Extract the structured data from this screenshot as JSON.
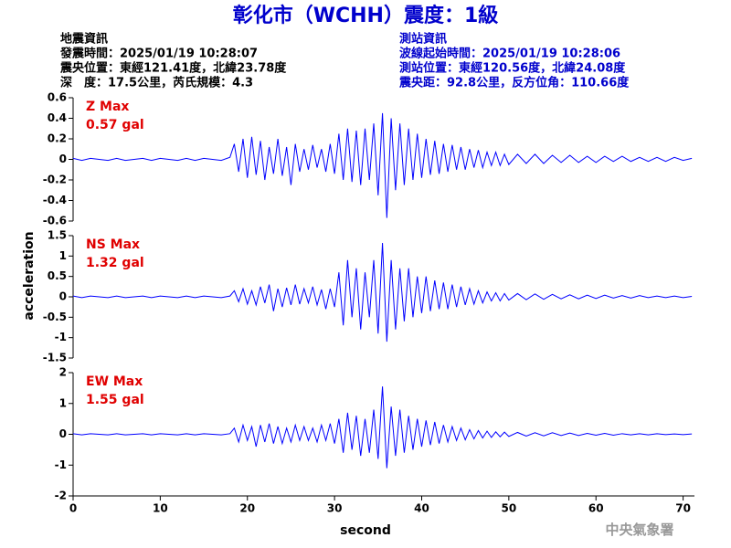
{
  "header": {
    "title": "彰化市（WCHH）震度：1級",
    "event": [
      "地震資訊",
      "發震時間：2025/01/19 10:28:07",
      "震央位置：東經121.41度，北緯23.78度",
      "深　度：17.5公里，芮氏規模：4.3"
    ],
    "station": [
      "測站資訊",
      "波線起始時間：2025/01/19 10:28:06",
      "測站位置：東經120.56度，北緯24.08度",
      "震央距：92.8公里，反方位角：110.66度"
    ]
  },
  "watermark": "中央氣象署",
  "chart_data": {
    "type": "line",
    "x_label": "second",
    "y_label": "acceleration",
    "xlim": [
      0,
      71.3
    ],
    "xticks": [
      0,
      10,
      20,
      30,
      40,
      50,
      60,
      70
    ],
    "x": [
      0,
      1,
      2,
      3,
      4,
      5,
      6,
      7,
      8,
      9,
      10,
      11,
      12,
      13,
      14,
      15,
      16,
      17,
      18,
      18.5,
      19,
      19.5,
      20,
      20.5,
      21,
      21.5,
      22,
      22.5,
      23,
      23.5,
      24,
      24.5,
      25,
      25.5,
      26,
      26.5,
      27,
      27.5,
      28,
      28.5,
      29,
      29.5,
      30,
      30.5,
      31,
      31.5,
      32,
      32.5,
      33,
      33.5,
      34,
      34.5,
      35,
      35.5,
      36,
      36.5,
      37,
      37.5,
      38,
      38.5,
      39,
      39.5,
      40,
      40.5,
      41,
      41.5,
      42,
      42.5,
      43,
      43.5,
      44,
      44.5,
      45,
      45.5,
      46,
      46.5,
      47,
      47.5,
      48,
      48.5,
      49,
      49.5,
      50,
      51,
      52,
      53,
      54,
      55,
      56,
      57,
      58,
      59,
      60,
      61,
      62,
      63,
      64,
      65,
      66,
      67,
      68,
      69,
      70,
      71
    ],
    "panels": [
      {
        "name": "Z Max",
        "annotation": "0.57 gal",
        "color": "#0000ff",
        "ylim": [
          -0.6,
          0.6
        ],
        "yticks": [
          0.6,
          0.4,
          0.2,
          0,
          -0.2,
          -0.4,
          -0.6
        ],
        "values": [
          0.01,
          -0.01,
          0.01,
          0,
          -0.01,
          0.01,
          -0.01,
          0,
          0.01,
          -0.01,
          0.01,
          0,
          -0.01,
          0.01,
          -0.01,
          0.01,
          0,
          -0.01,
          0.02,
          0.15,
          -0.12,
          0.2,
          -0.18,
          0.22,
          -0.15,
          0.18,
          -0.2,
          0.12,
          -0.14,
          0.2,
          -0.16,
          0.12,
          -0.25,
          0.15,
          -0.12,
          0.1,
          -0.1,
          0.14,
          -0.08,
          0.1,
          -0.12,
          0.15,
          -0.14,
          0.25,
          -0.2,
          0.3,
          -0.22,
          0.28,
          -0.25,
          0.3,
          -0.2,
          0.35,
          -0.35,
          0.45,
          -0.57,
          0.4,
          -0.3,
          0.35,
          -0.25,
          0.3,
          -0.2,
          0.25,
          -0.18,
          0.2,
          -0.15,
          0.18,
          -0.14,
          0.15,
          -0.12,
          0.14,
          -0.1,
          0.12,
          -0.1,
          0.1,
          -0.08,
          0.09,
          -0.08,
          0.07,
          -0.06,
          0.07,
          -0.06,
          0.05,
          -0.05,
          0.05,
          -0.04,
          0.05,
          -0.04,
          0.04,
          -0.03,
          0.04,
          -0.03,
          0.03,
          -0.03,
          0.03,
          -0.02,
          0.03,
          -0.02,
          0.02,
          -0.02,
          0.02,
          -0.02,
          0.02,
          -0.01,
          0.01
        ]
      },
      {
        "name": "NS Max",
        "annotation": "1.32 gal",
        "color": "#0000ff",
        "ylim": [
          -1.5,
          1.5
        ],
        "yticks": [
          1.5,
          1,
          0.5,
          0,
          -0.5,
          -1,
          -1.5
        ],
        "values": [
          0.02,
          -0.02,
          0.02,
          0,
          -0.02,
          0.02,
          -0.02,
          0,
          0.02,
          -0.02,
          0.02,
          0,
          -0.02,
          0.02,
          -0.02,
          0.02,
          0,
          -0.02,
          0.02,
          0.15,
          -0.12,
          0.2,
          -0.18,
          0.15,
          -0.2,
          0.25,
          -0.15,
          0.3,
          -0.35,
          0.2,
          -0.25,
          0.22,
          -0.2,
          0.3,
          -0.18,
          0.2,
          -0.15,
          0.25,
          -0.2,
          0.18,
          -0.3,
          0.2,
          -0.25,
          0.6,
          -0.7,
          0.9,
          -0.5,
          0.7,
          -0.8,
          0.6,
          -0.5,
          0.9,
          -0.9,
          1.32,
          -1.1,
          0.9,
          -0.8,
          0.7,
          -0.6,
          0.7,
          -0.5,
          0.5,
          -0.4,
          0.5,
          -0.35,
          0.4,
          -0.3,
          0.35,
          -0.3,
          0.3,
          -0.25,
          0.25,
          -0.2,
          0.2,
          -0.18,
          0.15,
          -0.15,
          0.12,
          -0.1,
          0.1,
          -0.1,
          0.08,
          -0.08,
          0.08,
          -0.07,
          0.07,
          -0.06,
          0.06,
          -0.05,
          0.05,
          -0.05,
          0.04,
          -0.04,
          0.04,
          -0.03,
          0.03,
          -0.03,
          0.03,
          -0.02,
          0.02,
          -0.02,
          0.02,
          -0.02,
          0.01
        ]
      },
      {
        "name": "EW Max",
        "annotation": "1.55 gal",
        "color": "#0000ff",
        "ylim": [
          -2,
          2
        ],
        "yticks": [
          2,
          1,
          0,
          -1,
          -2
        ],
        "values": [
          0.02,
          -0.02,
          0.02,
          0,
          -0.02,
          0.02,
          -0.02,
          0,
          0.02,
          -0.02,
          0.02,
          0,
          -0.02,
          0.02,
          -0.02,
          0.02,
          0,
          -0.02,
          0.02,
          0.2,
          -0.25,
          0.3,
          -0.2,
          0.25,
          -0.4,
          0.3,
          -0.25,
          0.35,
          -0.3,
          0.25,
          -0.3,
          0.2,
          -0.25,
          0.3,
          -0.2,
          0.25,
          -0.2,
          0.2,
          -0.25,
          0.3,
          -0.2,
          0.35,
          -0.3,
          0.5,
          -0.6,
          0.7,
          -0.5,
          0.6,
          -0.7,
          0.5,
          -0.6,
          0.8,
          -0.8,
          1.55,
          -1.1,
          0.9,
          -0.7,
          0.8,
          -0.6,
          0.6,
          -0.5,
          0.5,
          -0.4,
          0.45,
          -0.35,
          0.4,
          -0.3,
          0.3,
          -0.25,
          0.25,
          -0.2,
          0.2,
          -0.18,
          0.15,
          -0.15,
          0.12,
          -0.12,
          0.1,
          -0.1,
          0.08,
          -0.08,
          0.07,
          -0.07,
          0.06,
          -0.06,
          0.05,
          -0.05,
          0.05,
          -0.04,
          0.04,
          -0.04,
          0.03,
          -0.03,
          0.03,
          -0.03,
          0.02,
          -0.02,
          0.02,
          -0.02,
          0.02,
          -0.01,
          0.01,
          -0.01,
          0.01
        ]
      }
    ]
  }
}
